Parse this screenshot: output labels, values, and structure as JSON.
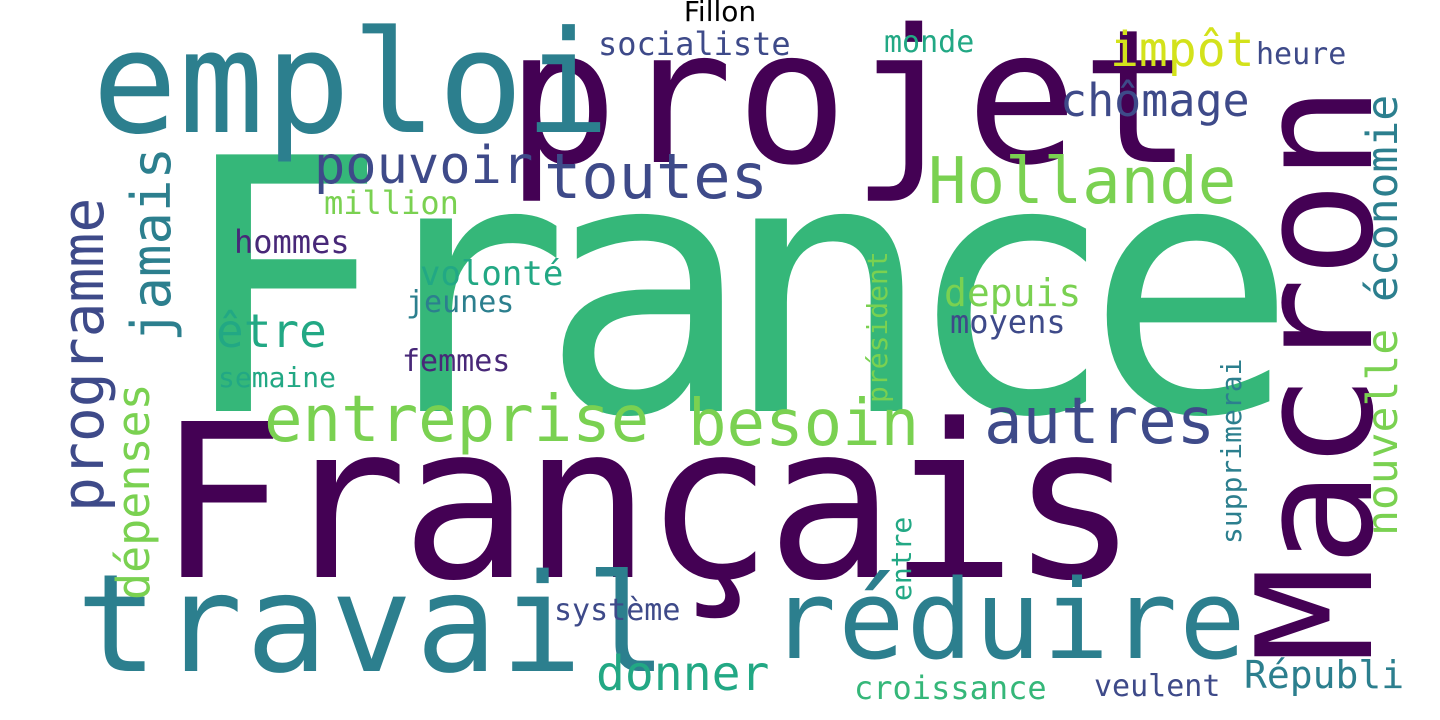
{
  "title": "Fillon",
  "words": {
    "france": {
      "text": "France",
      "color": "#35b779"
    },
    "francais": {
      "text": "Français",
      "color": "#440154"
    },
    "projet": {
      "text": "projet",
      "color": "#440154"
    },
    "emploi": {
      "text": "emploi",
      "color": "#2c7f8e"
    },
    "travail": {
      "text": "travail",
      "color": "#2c7f8e"
    },
    "reduire": {
      "text": "réduire",
      "color": "#2c7f8e"
    },
    "macron": {
      "text": "Macron",
      "color": "#440154"
    },
    "programme": {
      "text": "programme",
      "color": "#3e4a89"
    },
    "jamais": {
      "text": "jamais",
      "color": "#2c7f8e"
    },
    "depenses": {
      "text": "dépenses",
      "color": "#7ad151"
    },
    "entreprise": {
      "text": "entreprise",
      "color": "#7ad151"
    },
    "besoin": {
      "text": "besoin",
      "color": "#7ad151"
    },
    "autres": {
      "text": "autres",
      "color": "#3e4a89"
    },
    "toutes": {
      "text": "toutes",
      "color": "#3e4a89"
    },
    "hollande": {
      "text": "Hollande",
      "color": "#7ad151"
    },
    "pouvoir": {
      "text": "pouvoir",
      "color": "#3e4a89"
    },
    "chomage": {
      "text": "chômage",
      "color": "#3e4a89"
    },
    "impot": {
      "text": "impôt",
      "color": "#d3e21b"
    },
    "heure": {
      "text": "heure",
      "color": "#3e4a89"
    },
    "economie": {
      "text": "économie",
      "color": "#2c7f8e"
    },
    "nouvelle": {
      "text": "nouvelle",
      "color": "#7ad151"
    },
    "socialiste": {
      "text": "socialiste",
      "color": "#3e4a89"
    },
    "monde": {
      "text": "monde",
      "color": "#22a884"
    },
    "million": {
      "text": "million",
      "color": "#7ad151"
    },
    "hommes": {
      "text": "hommes",
      "color": "#482878"
    },
    "volonte": {
      "text": "volonté",
      "color": "#22a884"
    },
    "jeunes": {
      "text": "jeunes",
      "color": "#2c7f8e"
    },
    "etre": {
      "text": "être",
      "color": "#22a884"
    },
    "femmes": {
      "text": "femmes",
      "color": "#482878"
    },
    "semaine": {
      "text": "semaine",
      "color": "#22a884"
    },
    "depuis": {
      "text": "depuis",
      "color": "#7ad151"
    },
    "moyens": {
      "text": "moyens",
      "color": "#3e4a89"
    },
    "president": {
      "text": "président",
      "color": "#7ad151"
    },
    "supprimerai": {
      "text": "supprimerai",
      "color": "#2c7f8e"
    },
    "entre": {
      "text": "entre",
      "color": "#22a884"
    },
    "systeme": {
      "text": "système",
      "color": "#3e4a89"
    },
    "donner": {
      "text": "donner",
      "color": "#22a884"
    },
    "croissance": {
      "text": "croissance",
      "color": "#35b779"
    },
    "veulent": {
      "text": "veulent",
      "color": "#3e4a89"
    },
    "republi": {
      "text": "Républi",
      "color": "#2c7f8e"
    }
  }
}
